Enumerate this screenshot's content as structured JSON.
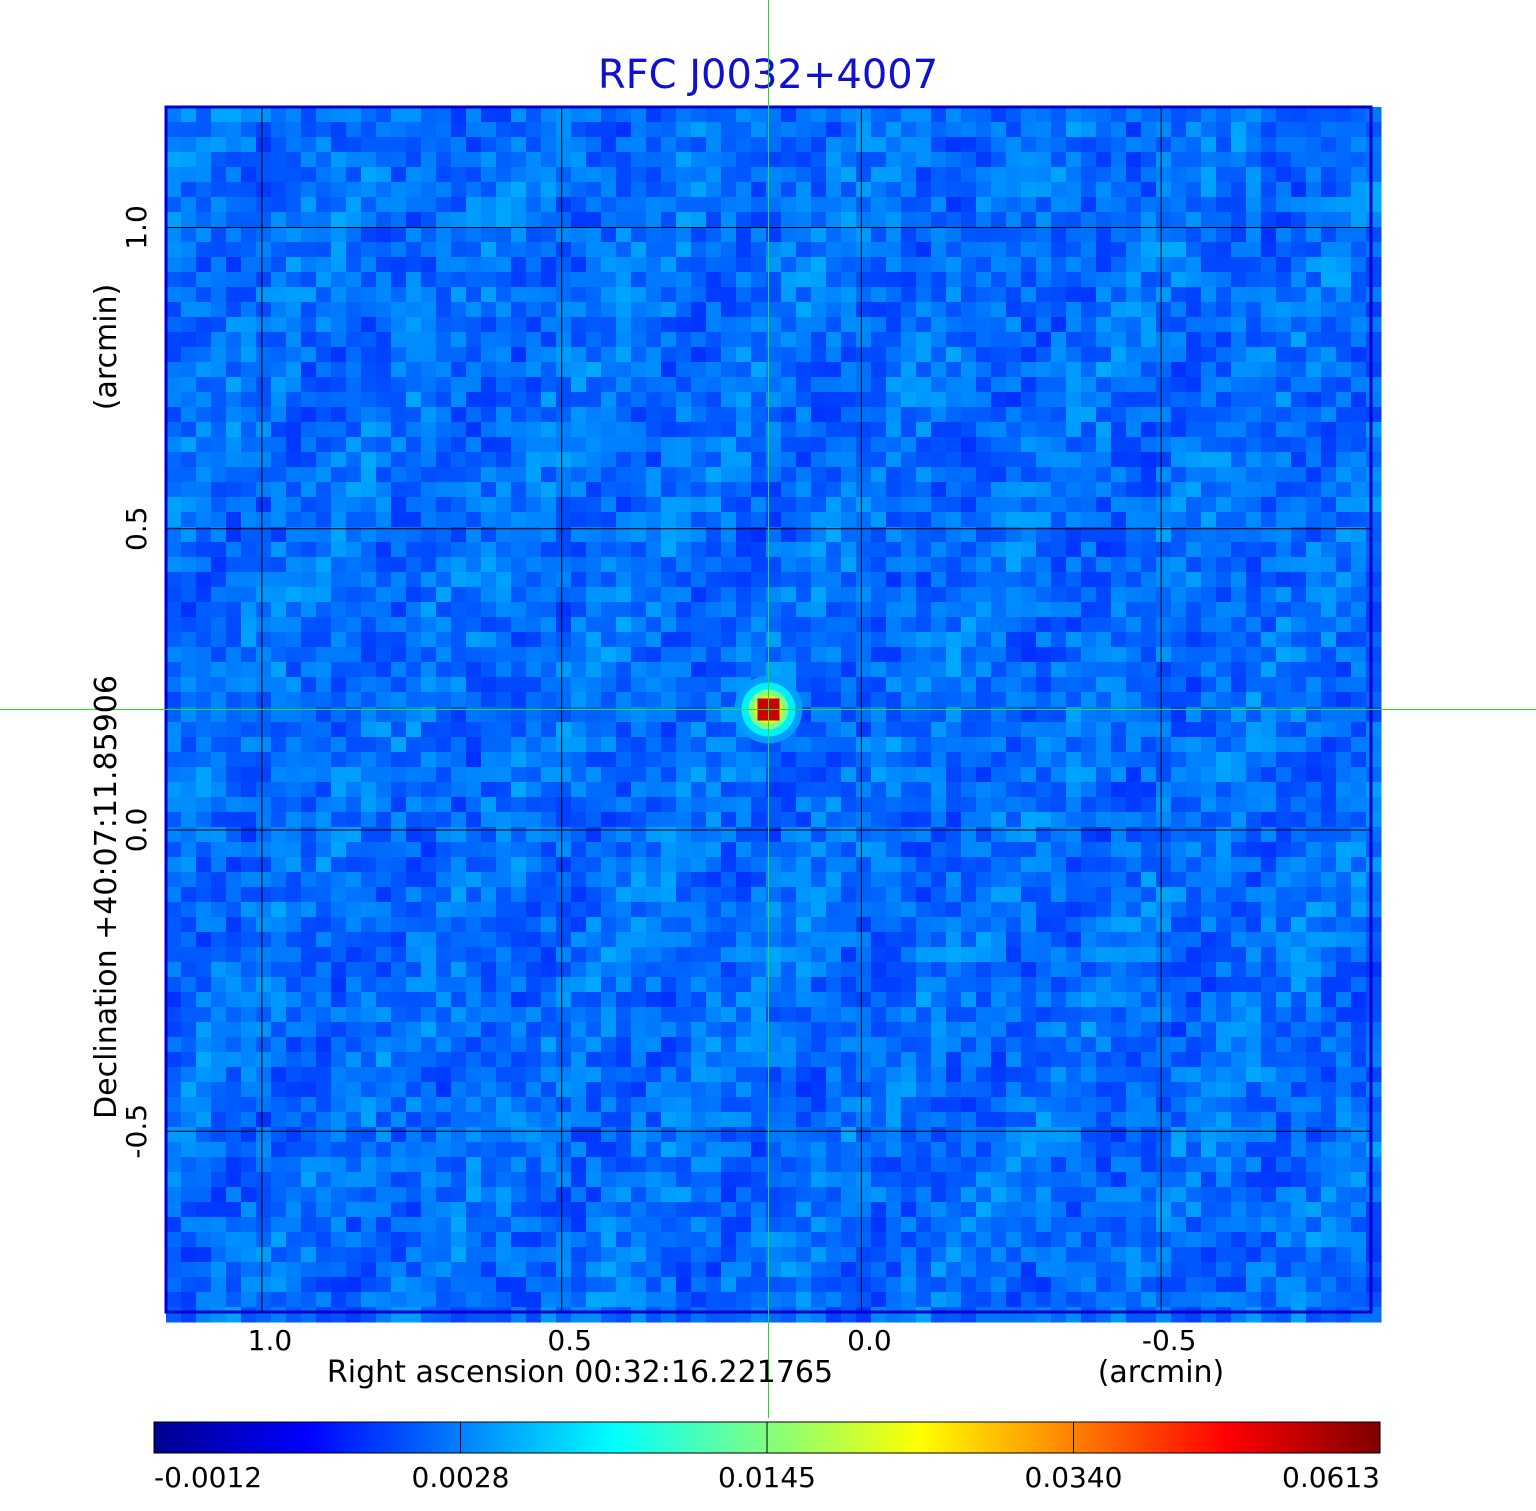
{
  "chart_data": {
    "type": "heatmap",
    "title": "RFC J0032+4007",
    "title_color": "#1010d0",
    "xlabel": "Right ascension  00:32:16.221765",
    "xunit": "(arcmin)",
    "ylabel": "Declination  +40:07:11.85906",
    "yunit": "(arcmin)",
    "xlim": [
      1.16,
      -0.85
    ],
    "ylim": [
      -0.8,
      1.2
    ],
    "x_ticks": [
      1.0,
      0.5,
      0.0,
      -0.5
    ],
    "y_ticks": [
      1.0,
      0.5,
      0.0,
      -0.5
    ],
    "x_tick_labels": [
      "1.0",
      "0.5",
      "0.0",
      "-0.5"
    ],
    "y_tick_labels": [
      "1.0",
      "0.5",
      "0.0",
      "-0.5"
    ],
    "grid": true,
    "crosshair": {
      "x": 0.155,
      "y": 0.2,
      "color": "#22dd22"
    },
    "source": {
      "x": 0.155,
      "y": 0.2,
      "peak": 0.0613
    },
    "background_level": 0.0025,
    "colorbar": {
      "ticks": [
        -0.0012,
        0.0028,
        0.0145,
        0.034,
        0.0613
      ],
      "tick_labels": [
        "-0.0012",
        "0.0028",
        "0.0145",
        "0.0340",
        "0.0613"
      ],
      "colormap": "jet",
      "colors": [
        "#00008f",
        "#0000ff",
        "#0080ff",
        "#00ffff",
        "#80ff80",
        "#ffff00",
        "#ff8000",
        "#ff0000",
        "#800000"
      ]
    },
    "frame_color": "#0000cc"
  }
}
